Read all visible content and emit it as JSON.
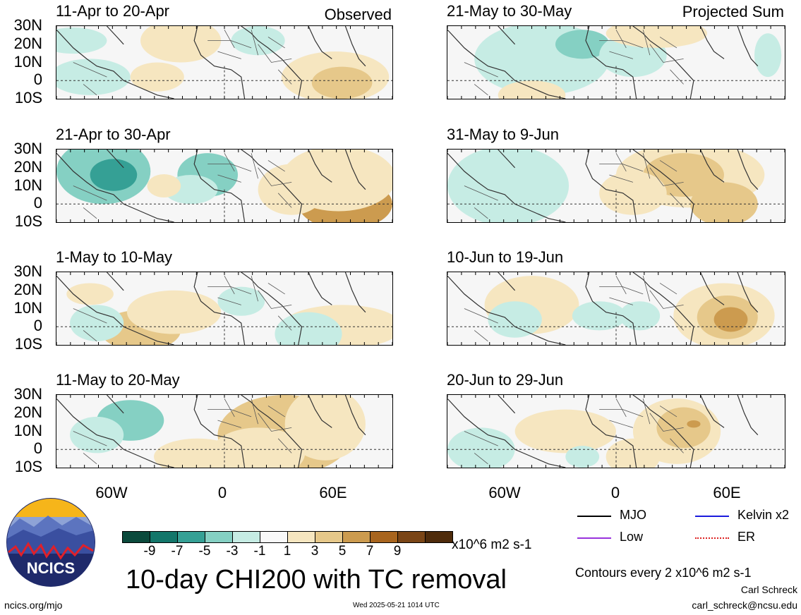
{
  "left_column": {
    "tag": "Observed",
    "panels": [
      {
        "title": "11-Apr to 20-Apr"
      },
      {
        "title": "21-Apr to 30-Apr"
      },
      {
        "title": "1-May to 10-May"
      },
      {
        "title": "11-May to 20-May"
      }
    ]
  },
  "right_column": {
    "tag": "Projected Sum",
    "panels": [
      {
        "title": "21-May to 30-May"
      },
      {
        "title": "31-May to 9-Jun"
      },
      {
        "title": "10-Jun to 19-Jun"
      },
      {
        "title": "20-Jun to 29-Jun"
      }
    ]
  },
  "lat_labels": [
    "30N",
    "20N",
    "10N",
    "0",
    "10S"
  ],
  "lon_labels": [
    "60W",
    "0",
    "60E"
  ],
  "colorbar": {
    "colors": [
      "#0b4a3c",
      "#13766a",
      "#35a095",
      "#85d0c3",
      "#c6ece4",
      "#f8f8f8",
      "#f6e6c0",
      "#e6c88a",
      "#cc9b4f",
      "#a8651e",
      "#7a4516",
      "#4e2b0b"
    ],
    "ticks": [
      "-9",
      "-7",
      "-5",
      "-3",
      "-1",
      "1",
      "3",
      "5",
      "7",
      "9"
    ],
    "units": "x10^6 m2 s-1"
  },
  "legend": [
    {
      "label": "MJO",
      "color": "#000000"
    },
    {
      "label": "Kelvin x2",
      "color": "#1b1bdd"
    },
    {
      "label": "Low",
      "color": "#9933dd"
    },
    {
      "label": "ER",
      "color": "#dd2222"
    }
  ],
  "contour_note": "Contours every 2 x10^6 m2 s-1",
  "main_title": "10-day CHI200 with TC removal",
  "logo_text": "NCICS",
  "footer": {
    "url": "ncics.org/mjo",
    "timestamp": "Wed 2025-05-21 1014 UTC",
    "author": "Carl Schreck",
    "email": "carl_schreck@ncsu.edu"
  }
}
